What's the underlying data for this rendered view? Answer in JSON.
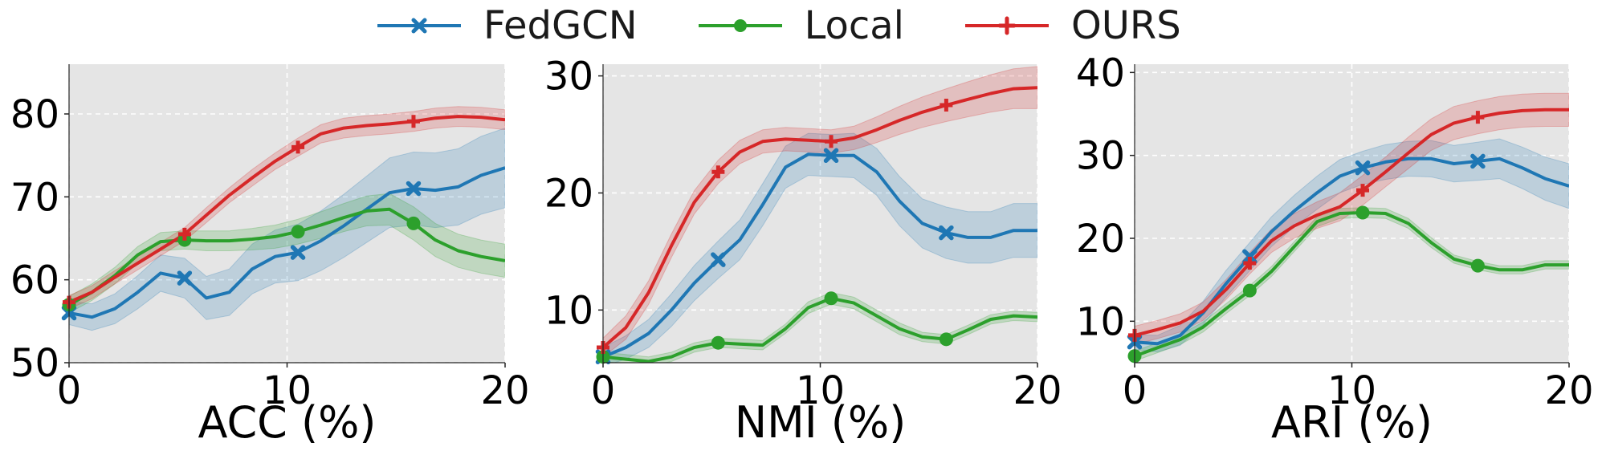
{
  "legend": {
    "items": [
      {
        "label": "FedGCN",
        "color": "#1f77b4",
        "marker": "x"
      },
      {
        "label": "Local",
        "color": "#2ca02c",
        "marker": "circle"
      },
      {
        "label": "OURS",
        "color": "#d62728",
        "marker": "plus"
      }
    ]
  },
  "chart_data": [
    {
      "type": "line",
      "xlabel": "ACC (%)",
      "ylabel": "",
      "xlim": [
        0,
        20
      ],
      "ylim": [
        50,
        86
      ],
      "xticks": [
        0,
        10,
        20
      ],
      "yticks": [
        50,
        60,
        70,
        80
      ],
      "grid": true,
      "markers_at": [
        0,
        5.3,
        10.5,
        15.8
      ],
      "series": [
        {
          "name": "FedGCN",
          "color": "#1f77b4",
          "marker": "x",
          "x": [
            0,
            1.05,
            2.1,
            3.15,
            4.2,
            5.3,
            6.3,
            7.35,
            8.4,
            9.45,
            10.5,
            11.55,
            12.6,
            13.65,
            14.7,
            15.8,
            16.8,
            17.85,
            18.9,
            20
          ],
          "y": [
            56.0,
            55.5,
            56.5,
            58.5,
            60.8,
            60.2,
            57.8,
            58.5,
            61.3,
            62.8,
            63.3,
            64.7,
            66.5,
            68.5,
            70.5,
            71.0,
            70.8,
            71.2,
            72.6,
            73.5
          ],
          "band": [
            1.4,
            1.6,
            1.8,
            2.0,
            2.2,
            2.4,
            2.6,
            2.8,
            3.0,
            3.2,
            3.4,
            3.6,
            3.8,
            4.0,
            4.2,
            4.4,
            4.5,
            4.6,
            4.7,
            4.8
          ]
        },
        {
          "name": "Local",
          "color": "#2ca02c",
          "marker": "circle",
          "x": [
            0,
            1.05,
            2.1,
            3.15,
            4.2,
            5.3,
            6.3,
            7.35,
            8.4,
            9.45,
            10.5,
            11.55,
            12.6,
            13.65,
            14.7,
            15.8,
            16.8,
            17.85,
            18.9,
            20
          ],
          "y": [
            57.0,
            58.5,
            60.5,
            63.0,
            64.6,
            64.8,
            64.7,
            64.7,
            64.9,
            65.2,
            65.8,
            66.6,
            67.5,
            68.3,
            68.5,
            66.8,
            64.8,
            63.5,
            62.8,
            62.3
          ],
          "band": [
            1.0,
            1.0,
            1.0,
            1.0,
            1.1,
            1.1,
            1.2,
            1.2,
            1.3,
            1.4,
            1.5,
            1.6,
            1.7,
            1.8,
            1.9,
            2.0,
            2.0,
            2.0,
            2.0,
            2.0
          ]
        },
        {
          "name": "OURS",
          "color": "#d62728",
          "marker": "plus",
          "x": [
            0,
            1.05,
            2.1,
            3.15,
            4.2,
            5.3,
            6.3,
            7.35,
            8.4,
            9.45,
            10.5,
            11.55,
            12.6,
            13.65,
            14.7,
            15.8,
            16.8,
            17.85,
            18.9,
            20
          ],
          "y": [
            57.3,
            58.5,
            60.3,
            62.0,
            63.7,
            65.5,
            67.8,
            70.2,
            72.3,
            74.3,
            76.0,
            77.6,
            78.3,
            78.6,
            78.8,
            79.1,
            79.5,
            79.7,
            79.6,
            79.3
          ],
          "band": [
            0.8,
            0.8,
            0.8,
            0.8,
            0.8,
            0.8,
            0.9,
            0.9,
            1.0,
            1.0,
            1.1,
            1.1,
            1.2,
            1.2,
            1.2,
            1.2,
            1.2,
            1.2,
            1.2,
            1.2
          ]
        }
      ]
    },
    {
      "type": "line",
      "xlabel": "NMI (%)",
      "ylabel": "",
      "xlim": [
        0,
        20
      ],
      "ylim": [
        5.5,
        31
      ],
      "xticks": [
        0,
        10,
        20
      ],
      "yticks": [
        10,
        20,
        30
      ],
      "grid": true,
      "markers_at": [
        0,
        5.3,
        10.5,
        15.8
      ],
      "series": [
        {
          "name": "FedGCN",
          "color": "#1f77b4",
          "marker": "x",
          "x": [
            0,
            1.05,
            2.1,
            3.15,
            4.2,
            5.3,
            6.3,
            7.35,
            8.4,
            9.45,
            10.5,
            11.55,
            12.6,
            13.65,
            14.7,
            15.8,
            16.8,
            17.85,
            18.9,
            20
          ],
          "y": [
            6.0,
            6.8,
            8.0,
            10.0,
            12.3,
            14.3,
            16.0,
            19.0,
            22.2,
            23.3,
            23.2,
            23.2,
            21.8,
            19.3,
            17.4,
            16.6,
            16.2,
            16.2,
            16.8,
            16.8
          ],
          "band": [
            0.8,
            1.0,
            1.2,
            1.4,
            1.5,
            1.6,
            1.7,
            1.8,
            1.8,
            1.8,
            1.8,
            1.9,
            2.0,
            2.1,
            2.1,
            2.2,
            2.2,
            2.2,
            2.3,
            2.3
          ]
        },
        {
          "name": "Local",
          "color": "#2ca02c",
          "marker": "circle",
          "x": [
            0,
            1.05,
            2.1,
            3.15,
            4.2,
            5.3,
            6.3,
            7.35,
            8.4,
            9.45,
            10.5,
            11.55,
            12.6,
            13.65,
            14.7,
            15.8,
            16.8,
            17.85,
            18.9,
            20
          ],
          "y": [
            6.0,
            5.8,
            5.6,
            6.0,
            6.8,
            7.2,
            7.1,
            7.0,
            8.4,
            10.2,
            11.0,
            10.6,
            9.5,
            8.4,
            7.7,
            7.5,
            8.3,
            9.2,
            9.5,
            9.4
          ],
          "band": [
            0.4,
            0.4,
            0.4,
            0.4,
            0.4,
            0.4,
            0.4,
            0.4,
            0.4,
            0.5,
            0.5,
            0.5,
            0.5,
            0.5,
            0.4,
            0.4,
            0.4,
            0.4,
            0.4,
            0.4
          ]
        },
        {
          "name": "OURS",
          "color": "#d62728",
          "marker": "plus",
          "x": [
            0,
            1.05,
            2.1,
            3.15,
            4.2,
            5.3,
            6.3,
            7.35,
            8.4,
            9.45,
            10.5,
            11.55,
            12.6,
            13.65,
            14.7,
            15.8,
            16.8,
            17.85,
            18.9,
            20
          ],
          "y": [
            6.8,
            8.5,
            11.5,
            15.5,
            19.2,
            21.8,
            23.5,
            24.4,
            24.6,
            24.5,
            24.4,
            24.7,
            25.4,
            26.2,
            26.9,
            27.5,
            28.0,
            28.5,
            28.9,
            29.0
          ],
          "band": [
            0.8,
            1.0,
            1.0,
            1.0,
            1.0,
            1.0,
            1.0,
            1.0,
            1.0,
            1.0,
            1.0,
            1.0,
            1.1,
            1.2,
            1.3,
            1.4,
            1.5,
            1.6,
            1.7,
            1.8
          ]
        }
      ]
    },
    {
      "type": "line",
      "xlabel": "ARI (%)",
      "ylabel": "",
      "xlim": [
        0,
        20
      ],
      "ylim": [
        5,
        41
      ],
      "xticks": [
        0,
        10,
        20
      ],
      "yticks": [
        10,
        20,
        30,
        40
      ],
      "grid": true,
      "markers_at": [
        0,
        5.3,
        10.5,
        15.8
      ],
      "series": [
        {
          "name": "FedGCN",
          "color": "#1f77b4",
          "marker": "x",
          "x": [
            0,
            1.05,
            2.1,
            3.15,
            4.2,
            5.3,
            6.3,
            7.35,
            8.4,
            9.45,
            10.5,
            11.55,
            12.6,
            13.65,
            14.7,
            15.8,
            16.8,
            17.85,
            18.9,
            20
          ],
          "y": [
            7.5,
            7.3,
            8.3,
            11.0,
            14.5,
            17.8,
            20.8,
            23.3,
            25.5,
            27.5,
            28.5,
            29.2,
            29.6,
            29.6,
            29.0,
            29.3,
            29.6,
            28.5,
            27.2,
            26.3
          ],
          "band": [
            0.9,
            1.0,
            1.2,
            1.4,
            1.6,
            1.7,
            1.8,
            1.9,
            2.0,
            2.0,
            2.0,
            2.1,
            2.1,
            2.2,
            2.2,
            2.3,
            2.4,
            2.5,
            2.6,
            2.7
          ]
        },
        {
          "name": "Local",
          "color": "#2ca02c",
          "marker": "circle",
          "x": [
            0,
            1.05,
            2.1,
            3.15,
            4.2,
            5.3,
            6.3,
            7.35,
            8.4,
            9.45,
            10.5,
            11.55,
            12.6,
            13.65,
            14.7,
            15.8,
            16.8,
            17.85,
            18.9,
            20
          ],
          "y": [
            5.8,
            6.8,
            7.8,
            9.3,
            11.5,
            13.7,
            16.0,
            19.0,
            22.0,
            23.0,
            23.1,
            23.0,
            21.8,
            19.5,
            17.5,
            16.7,
            16.2,
            16.2,
            16.8,
            16.8
          ],
          "band": [
            0.6,
            0.6,
            0.6,
            0.6,
            0.6,
            0.6,
            0.6,
            0.6,
            0.6,
            0.6,
            0.6,
            0.6,
            0.6,
            0.6,
            0.5,
            0.5,
            0.5,
            0.5,
            0.5,
            0.5
          ]
        },
        {
          "name": "OURS",
          "color": "#d62728",
          "marker": "plus",
          "x": [
            0,
            1.05,
            2.1,
            3.15,
            4.2,
            5.3,
            6.3,
            7.35,
            8.4,
            9.45,
            10.5,
            11.55,
            12.6,
            13.65,
            14.7,
            15.8,
            16.8,
            17.85,
            18.9,
            20
          ],
          "y": [
            8.3,
            9.0,
            9.8,
            11.2,
            13.8,
            17.0,
            19.7,
            21.5,
            22.8,
            23.8,
            25.8,
            28.0,
            30.3,
            32.5,
            33.9,
            34.6,
            35.1,
            35.4,
            35.5,
            35.5
          ],
          "band": [
            1.1,
            1.1,
            1.1,
            1.1,
            1.2,
            1.3,
            1.4,
            1.5,
            1.6,
            1.7,
            1.8,
            1.8,
            1.9,
            1.9,
            2.0,
            2.0,
            2.0,
            2.0,
            2.0,
            2.0
          ]
        }
      ]
    }
  ]
}
